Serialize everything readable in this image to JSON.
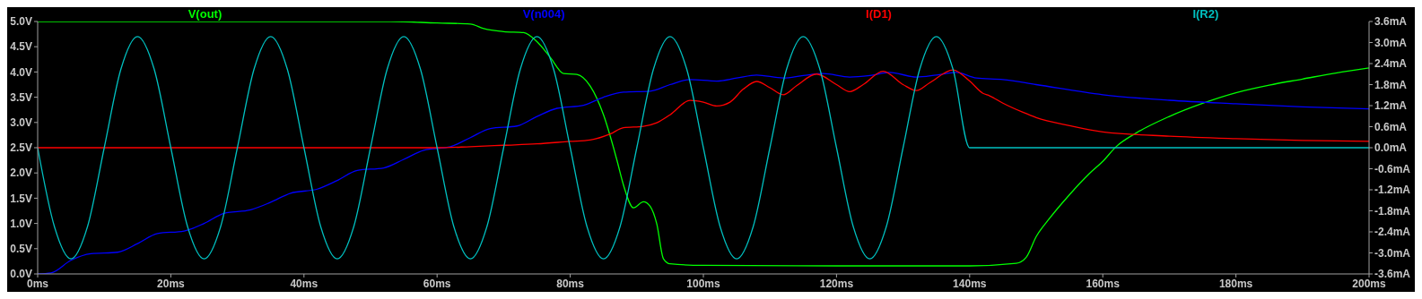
{
  "chart_data": {
    "type": "line",
    "legend": "top",
    "xlim": [
      0,
      200
    ],
    "xticks": [
      {
        "value": 0,
        "label": "0ms"
      },
      {
        "value": 20,
        "label": "20ms"
      },
      {
        "value": 40,
        "label": "40ms"
      },
      {
        "value": 60,
        "label": "60ms"
      },
      {
        "value": 80,
        "label": "80ms"
      },
      {
        "value": 100,
        "label": "100ms"
      },
      {
        "value": 120,
        "label": "120ms"
      },
      {
        "value": 140,
        "label": "140ms"
      },
      {
        "value": 160,
        "label": "160ms"
      },
      {
        "value": 180,
        "label": "180ms"
      },
      {
        "value": 200,
        "label": "200ms"
      }
    ],
    "ylim": [
      0,
      5
    ],
    "yticks": [
      {
        "value": 0,
        "label": "0.0V"
      },
      {
        "value": 0.5,
        "label": "0.5V"
      },
      {
        "value": 1,
        "label": "1.0V"
      },
      {
        "value": 1.5,
        "label": "1.5V"
      },
      {
        "value": 2,
        "label": "2.0V"
      },
      {
        "value": 2.5,
        "label": "2.5V"
      },
      {
        "value": 3,
        "label": "3.0V"
      },
      {
        "value": 3.5,
        "label": "3.5V"
      },
      {
        "value": 4,
        "label": "4.0V"
      },
      {
        "value": 4.5,
        "label": "4.5V"
      },
      {
        "value": 5,
        "label": "5.0V"
      }
    ],
    "y2lim": [
      -3.6,
      3.6
    ],
    "y2ticks": [
      {
        "value": -3.6,
        "label": "-3.6mA"
      },
      {
        "value": -3,
        "label": "-3.0mA"
      },
      {
        "value": -2.4,
        "label": "-2.4mA"
      },
      {
        "value": -1.8,
        "label": "-1.8mA"
      },
      {
        "value": -1.2,
        "label": "-1.2mA"
      },
      {
        "value": -0.6,
        "label": "-0.6mA"
      },
      {
        "value": 0,
        "label": "0.0mA"
      },
      {
        "value": 0.6,
        "label": "0.6mA"
      },
      {
        "value": 1.2,
        "label": "1.2mA"
      },
      {
        "value": 1.8,
        "label": "1.8mA"
      },
      {
        "value": 2.4,
        "label": "2.4mA"
      },
      {
        "value": 3,
        "label": "3.0mA"
      },
      {
        "value": 3.6,
        "label": "3.6mA"
      }
    ],
    "series": [
      {
        "name": "V(out)",
        "color": "#00ff00",
        "x": [
          0,
          53,
          60,
          65,
          67,
          70,
          73,
          75,
          77,
          79,
          81,
          83,
          85,
          87,
          88,
          89.5,
          91,
          92,
          93,
          94,
          95,
          100,
          120,
          140,
          147,
          148.5,
          150,
          152,
          155,
          158,
          160,
          162,
          165,
          170,
          175,
          180,
          185,
          190,
          195,
          200
        ],
        "values": [
          5,
          5,
          4.97,
          4.95,
          4.86,
          4.8,
          4.78,
          4.6,
          4.29,
          3.97,
          3.95,
          3.72,
          3.15,
          2.26,
          1.76,
          1.31,
          1.43,
          1.34,
          0.99,
          0.3,
          0.2,
          0.17,
          0.16,
          0.16,
          0.21,
          0.33,
          0.74,
          1.1,
          1.57,
          1.99,
          2.23,
          2.52,
          2.79,
          3.12,
          3.38,
          3.59,
          3.74,
          3.86,
          3.98,
          4.08
        ]
      },
      {
        "name": "V(n004)",
        "color": "#0000ff",
        "x": [
          0,
          2,
          5,
          8,
          12,
          15,
          18,
          22,
          25,
          28,
          32,
          35,
          38,
          42,
          45,
          48,
          52,
          55,
          58,
          62,
          65,
          68,
          72,
          75,
          78,
          82,
          85,
          88,
          92,
          95,
          98,
          102,
          105,
          108,
          112,
          115,
          118,
          122,
          125,
          128,
          132,
          135,
          138,
          141,
          145,
          150,
          160,
          170,
          180,
          190,
          200
        ],
        "values": [
          0,
          0.02,
          0.27,
          0.4,
          0.43,
          0.6,
          0.8,
          0.85,
          1,
          1.2,
          1.27,
          1.42,
          1.6,
          1.68,
          1.85,
          2.05,
          2.1,
          2.27,
          2.45,
          2.52,
          2.7,
          2.88,
          2.93,
          3.12,
          3.28,
          3.34,
          3.5,
          3.6,
          3.62,
          3.75,
          3.85,
          3.82,
          3.88,
          3.94,
          3.88,
          3.93,
          3.97,
          3.9,
          3.93,
          3.99,
          3.9,
          3.94,
          3.99,
          3.88,
          3.85,
          3.75,
          3.55,
          3.44,
          3.37,
          3.31,
          3.27
        ]
      },
      {
        "name": "I(D1)",
        "color": "#ff0000",
        "axis": "y2",
        "x": [
          0,
          60,
          65,
          70,
          75,
          80,
          83,
          86,
          88,
          91,
          93,
          95,
          98,
          100,
          102,
          104,
          106,
          108,
          110,
          112,
          114,
          117,
          120,
          122,
          124,
          127,
          130,
          132,
          134,
          137.5,
          140,
          142,
          143,
          145,
          148,
          150,
          155,
          160,
          170,
          180,
          190,
          200
        ],
        "values": [
          0,
          0,
          0.03,
          0.07,
          0.11,
          0.18,
          0.22,
          0.39,
          0.57,
          0.61,
          0.71,
          0.94,
          1.35,
          1.3,
          1.19,
          1.3,
          1.67,
          1.89,
          1.71,
          1.51,
          1.77,
          2.1,
          1.8,
          1.6,
          1.8,
          2.18,
          1.8,
          1.63,
          1.85,
          2.22,
          1.9,
          1.55,
          1.48,
          1.27,
          1.01,
          0.86,
          0.63,
          0.45,
          0.33,
          0.26,
          0.21,
          0.18
        ]
      },
      {
        "name": "I(R2)",
        "color": "#00c0c0",
        "axis": "y2",
        "x": [
          0,
          2.5,
          5,
          7.5,
          10,
          12.5,
          15,
          17.5,
          20,
          22.5,
          25,
          27.5,
          30,
          32.5,
          35,
          37.5,
          40,
          42.5,
          45,
          47.5,
          50,
          52.5,
          55,
          57.5,
          60,
          62.5,
          65,
          67.5,
          70,
          72.5,
          75,
          77.5,
          80,
          82.5,
          85,
          87.5,
          90,
          92.5,
          95,
          97.5,
          100,
          102.5,
          105,
          107.5,
          110,
          112.5,
          115,
          117.5,
          120,
          122.5,
          125,
          127.5,
          130,
          132.5,
          135,
          137.5,
          140,
          200
        ],
        "values": [
          0,
          -2.24,
          -3.17,
          -2.24,
          0,
          2.24,
          3.17,
          2.24,
          0,
          -2.24,
          -3.17,
          -2.24,
          0,
          2.24,
          3.17,
          2.24,
          0,
          -2.24,
          -3.17,
          -2.24,
          0,
          2.24,
          3.17,
          2.24,
          0,
          -2.24,
          -3.17,
          -2.24,
          0,
          2.24,
          3.17,
          2.24,
          0,
          -2.24,
          -3.17,
          -2.24,
          0,
          2.24,
          3.17,
          2.24,
          0,
          -2.24,
          -3.17,
          -2.24,
          0,
          2.24,
          3.17,
          2.24,
          0,
          -2.24,
          -3.17,
          -2.24,
          0,
          2.24,
          3.17,
          2.24,
          0,
          0
        ]
      }
    ]
  }
}
